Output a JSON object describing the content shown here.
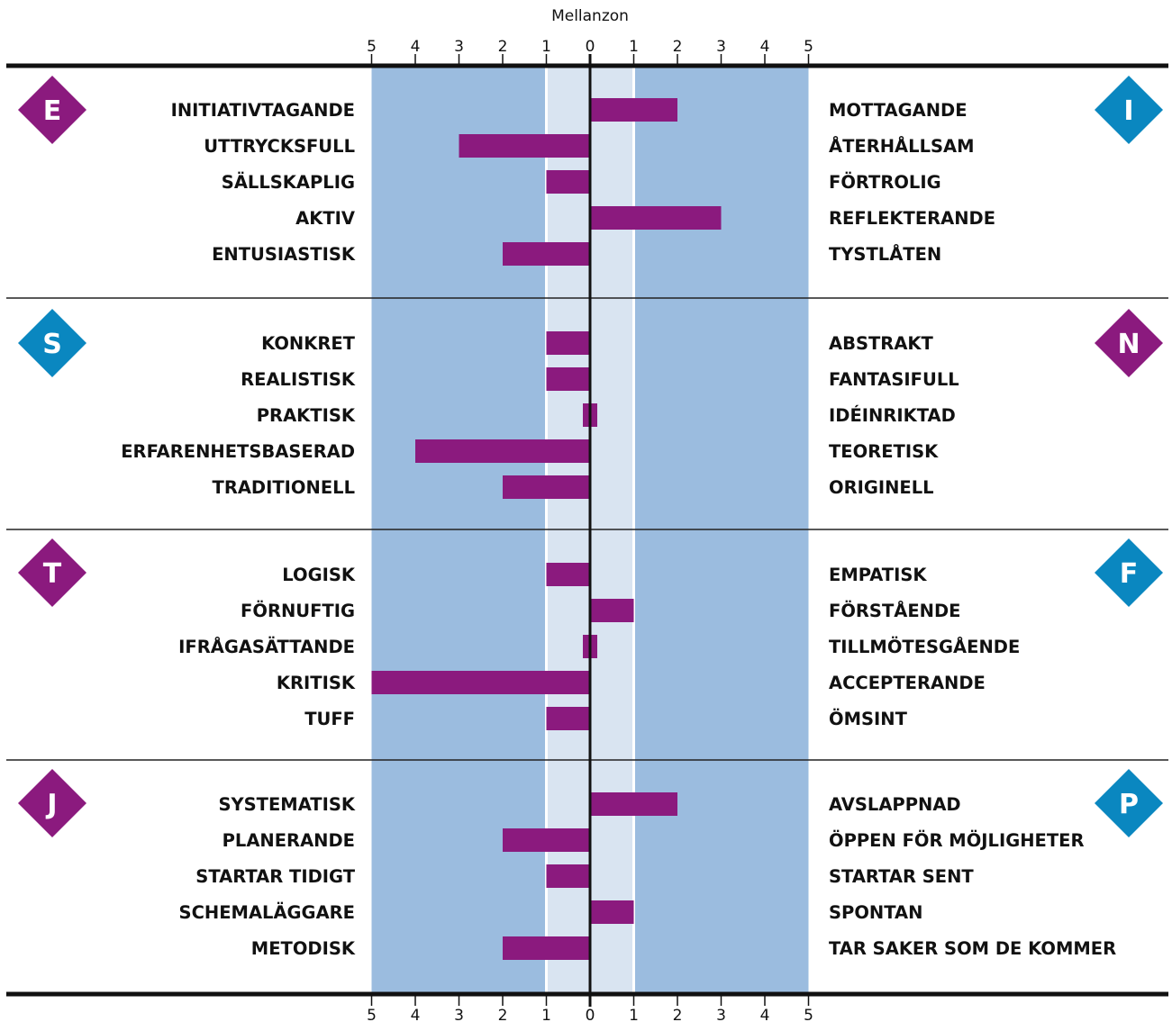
{
  "chart_data": {
    "type": "bar",
    "orientation": "horizontal-diverging",
    "zone_title": "Mellanzon",
    "scale": {
      "min": -5,
      "max": 5,
      "zone": [
        -1,
        1
      ]
    },
    "tick_labels": [
      "5",
      "4",
      "3",
      "2",
      "1",
      "0",
      "1",
      "2",
      "3",
      "4",
      "5"
    ],
    "colors": {
      "bar": "#8b1a7e",
      "outer_band": "#9bbcdf",
      "zone_band": "#d9e4f1",
      "badge_purple": "#8b1a7e",
      "badge_blue": "#0a87c0"
    },
    "groups": [
      {
        "left_letter": "E",
        "left_color": "purple",
        "right_letter": "I",
        "right_color": "blue",
        "items": [
          {
            "left": "INITIATIVTAGANDE",
            "right": "MOTTAGANDE",
            "value": 2
          },
          {
            "left": "UTTRYCKSFULL",
            "right": "ÅTERHÅLLSAM",
            "value": -3
          },
          {
            "left": "SÄLLSKAPLIG",
            "right": "FÖRTROLIG",
            "value": -1
          },
          {
            "left": "AKTIV",
            "right": "REFLEKTERANDE",
            "value": 3
          },
          {
            "left": "ENTUSIASTISK",
            "right": "TYSTLÅTEN",
            "value": -2
          }
        ]
      },
      {
        "left_letter": "S",
        "left_color": "blue",
        "right_letter": "N",
        "right_color": "purple",
        "items": [
          {
            "left": "KONKRET",
            "right": "ABSTRAKT",
            "value": -1
          },
          {
            "left": "REALISTISK",
            "right": "FANTASIFULL",
            "value": -1
          },
          {
            "left": "PRAKTISK",
            "right": "IDÉINRIKTAD",
            "value": 0
          },
          {
            "left": "ERFARENHETSBASERAD",
            "right": "TEORETISK",
            "value": -4
          },
          {
            "left": "TRADITIONELL",
            "right": "ORIGINELL",
            "value": -2
          }
        ]
      },
      {
        "left_letter": "T",
        "left_color": "purple",
        "right_letter": "F",
        "right_color": "blue",
        "items": [
          {
            "left": "LOGISK",
            "right": "EMPATISK",
            "value": -1
          },
          {
            "left": "FÖRNUFTIG",
            "right": "FÖRSTÅENDE",
            "value": 1
          },
          {
            "left": "IFRÅGASÄTTANDE",
            "right": "TILLMÖTESGÅENDE",
            "value": 0
          },
          {
            "left": "KRITISK",
            "right": "ACCEPTERANDE",
            "value": -5
          },
          {
            "left": "TUFF",
            "right": "ÖMSINT",
            "value": -1
          }
        ]
      },
      {
        "left_letter": "J",
        "left_color": "purple",
        "right_letter": "P",
        "right_color": "blue",
        "items": [
          {
            "left": "SYSTEMATISK",
            "right": "AVSLAPPNAD",
            "value": 2
          },
          {
            "left": "PLANERANDE",
            "right": "ÖPPEN FÖR MÖJLIGHETER",
            "value": -2
          },
          {
            "left": "STARTAR TIDIGT",
            "right": "STARTAR SENT",
            "value": -1
          },
          {
            "left": "SCHEMALÄGGARE",
            "right": "SPONTAN",
            "value": 1
          },
          {
            "left": "METODISK",
            "right": "TAR SAKER SOM DE KOMMER",
            "value": -2
          }
        ]
      }
    ]
  }
}
